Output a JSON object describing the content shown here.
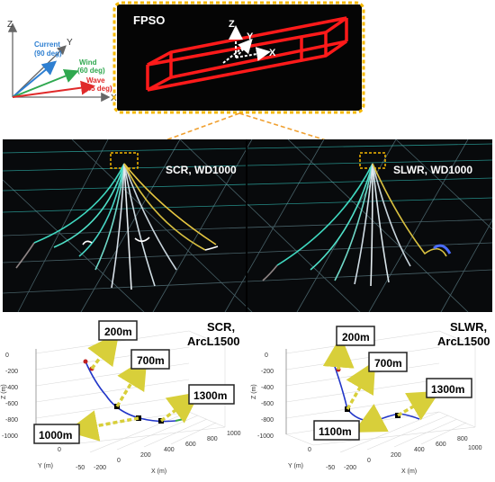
{
  "axes_legend": {
    "z": "Z",
    "y": "Y",
    "x": "X",
    "current_label": "Current",
    "current_deg": "(90 deg)",
    "wind_label": "Wind",
    "wind_deg": "(60 deg)",
    "wave_label": "Wave",
    "wave_deg": "(45 deg)",
    "colors": {
      "current": "#2e7fd1",
      "wind": "#2fa84f",
      "wave": "#e02a2a"
    }
  },
  "fpso": {
    "title": "FPSO",
    "z": "Z",
    "y": "Y",
    "x": "X",
    "hull_color": "#ff1a1a",
    "frame_color": "#f5b800"
  },
  "panels": {
    "left_label": "SCR, WD1000",
    "right_label": "SLWR, WD1000"
  },
  "plots": {
    "left": {
      "title_line1": "SCR,",
      "title_line2": "ArcL1500",
      "callouts": [
        "200m",
        "700m",
        "1300m",
        "1000m"
      ],
      "z_ticks": [
        "0",
        "-200",
        "-400",
        "-600",
        "-800",
        "-1000"
      ],
      "z_label": "Z (m)",
      "y_ticks": [
        "0",
        "-50"
      ],
      "y_label": "Y (m)",
      "x_ticks": [
        "-200",
        "0",
        "200",
        "400",
        "600",
        "800",
        "1000"
      ],
      "x_label": "X (m)"
    },
    "right": {
      "title_line1": "SLWR,",
      "title_line2": "ArcL1500",
      "callouts": [
        "200m",
        "700m",
        "1300m",
        "1100m"
      ],
      "z_ticks": [
        "0",
        "-200",
        "-400",
        "-600",
        "-800",
        "-1000"
      ],
      "z_label": "Z (m)",
      "y_ticks": [
        "0",
        "-50"
      ],
      "y_label": "Y (m)",
      "x_ticks": [
        "-200",
        "0",
        "200",
        "400",
        "600",
        "800",
        "1000"
      ],
      "x_label": "X (m)"
    }
  }
}
